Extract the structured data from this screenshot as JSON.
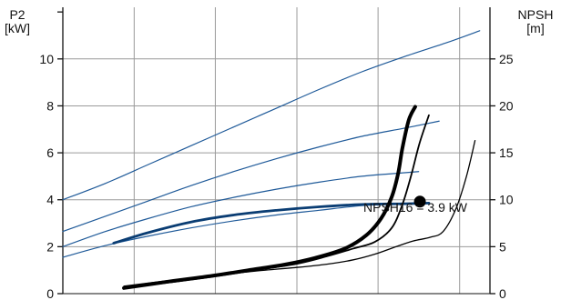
{
  "chart_data": {
    "type": "line",
    "title": "",
    "left_axis": {
      "label_line1": "P2",
      "label_line2": "[kW]",
      "ylim": [
        0,
        12.2
      ],
      "ticks": [
        0,
        2,
        4,
        6,
        8,
        10
      ]
    },
    "right_axis": {
      "label_line1": "NPSH",
      "label_line2": "[m]",
      "ylim": [
        0,
        30.5
      ],
      "ticks": [
        0,
        5,
        10,
        15,
        20,
        25
      ]
    },
    "x_axis": {
      "label": "",
      "xlim": [
        0,
        100
      ],
      "gridlines": [
        0,
        16.7,
        35.7,
        54.8,
        73.8,
        92.9
      ]
    },
    "grid": true,
    "series": [
      {
        "color": "#1f5a99",
        "width": 1.2,
        "axis": "left",
        "points": [
          [
            0,
            4.0
          ],
          [
            10,
            4.7
          ],
          [
            20,
            5.5
          ],
          [
            30,
            6.3
          ],
          [
            40,
            7.1
          ],
          [
            50,
            7.9
          ],
          [
            60,
            8.7
          ],
          [
            70,
            9.45
          ],
          [
            80,
            10.1
          ],
          [
            90,
            10.7
          ],
          [
            97.6,
            11.2
          ]
        ]
      },
      {
        "color": "#1f5a99",
        "width": 1.2,
        "axis": "left",
        "points": [
          [
            0,
            2.65
          ],
          [
            10,
            3.3
          ],
          [
            20,
            3.95
          ],
          [
            30,
            4.6
          ],
          [
            40,
            5.2
          ],
          [
            50,
            5.75
          ],
          [
            60,
            6.25
          ],
          [
            70,
            6.7
          ],
          [
            80,
            7.05
          ],
          [
            88.1,
            7.35
          ]
        ]
      },
      {
        "color": "#1f5a99",
        "width": 1.2,
        "axis": "left",
        "points": [
          [
            0,
            2.0
          ],
          [
            10,
            2.65
          ],
          [
            20,
            3.2
          ],
          [
            30,
            3.7
          ],
          [
            40,
            4.1
          ],
          [
            50,
            4.45
          ],
          [
            60,
            4.75
          ],
          [
            70,
            5.0
          ],
          [
            80,
            5.15
          ],
          [
            83.3,
            5.2
          ]
        ]
      },
      {
        "color": "#1f5a99",
        "width": 1.2,
        "axis": "left",
        "points": [
          [
            0,
            1.55
          ],
          [
            10,
            2.05
          ],
          [
            20,
            2.45
          ],
          [
            30,
            2.8
          ],
          [
            40,
            3.1
          ],
          [
            50,
            3.35
          ],
          [
            60,
            3.55
          ],
          [
            70,
            3.75
          ],
          [
            79.8,
            3.85
          ]
        ]
      },
      {
        "color": "#0a3d73",
        "width": 2.8,
        "axis": "left",
        "points": [
          [
            11.9,
            2.15
          ],
          [
            20,
            2.6
          ],
          [
            30,
            3.05
          ],
          [
            40,
            3.35
          ],
          [
            50,
            3.55
          ],
          [
            60,
            3.7
          ],
          [
            70,
            3.8
          ],
          [
            80,
            3.83
          ],
          [
            85.7,
            3.86
          ]
        ]
      },
      {
        "color": "#000000",
        "width": 1.8,
        "axis": "right",
        "points": [
          [
            14.3,
            0.6
          ],
          [
            25,
            1.2
          ],
          [
            35,
            1.8
          ],
          [
            45,
            2.5
          ],
          [
            55,
            3.2
          ],
          [
            62,
            4.0
          ],
          [
            68,
            4.8
          ],
          [
            73,
            5.5
          ],
          [
            77,
            7.0
          ],
          [
            79.5,
            9.5
          ],
          [
            81.5,
            12.5
          ],
          [
            83.5,
            16
          ],
          [
            85.7,
            19
          ]
        ]
      },
      {
        "color": "#000000",
        "width": 4.0,
        "axis": "right",
        "points": [
          [
            14.3,
            0.6
          ],
          [
            25,
            1.3
          ],
          [
            35,
            1.9
          ],
          [
            45,
            2.6
          ],
          [
            52,
            3.1
          ],
          [
            59,
            3.8
          ],
          [
            66,
            4.8
          ],
          [
            71,
            6.2
          ],
          [
            74.5,
            8.0
          ],
          [
            77,
            10.3
          ],
          [
            78.5,
            12.8
          ],
          [
            79.5,
            15.5
          ],
          [
            81,
            18.5
          ],
          [
            82.5,
            19.9
          ]
        ]
      },
      {
        "color": "#000000",
        "width": 1.3,
        "axis": "right",
        "points": [
          [
            14.3,
            0.8
          ],
          [
            25,
            1.4
          ],
          [
            35,
            1.9
          ],
          [
            45,
            2.4
          ],
          [
            55,
            2.8
          ],
          [
            62,
            3.15
          ],
          [
            68,
            3.6
          ],
          [
            73,
            4.2
          ],
          [
            78,
            5.0
          ],
          [
            82,
            5.6
          ],
          [
            86,
            6.0
          ],
          [
            89,
            6.6
          ],
          [
            92,
            9.0
          ],
          [
            94.5,
            12.5
          ],
          [
            96.5,
            16.3
          ]
        ]
      }
    ],
    "operating_point": {
      "x": 83.6,
      "y_right": 9.8,
      "color": "#000000"
    },
    "annotation": {
      "text": "NPSH16 = 3.9 kW"
    }
  }
}
